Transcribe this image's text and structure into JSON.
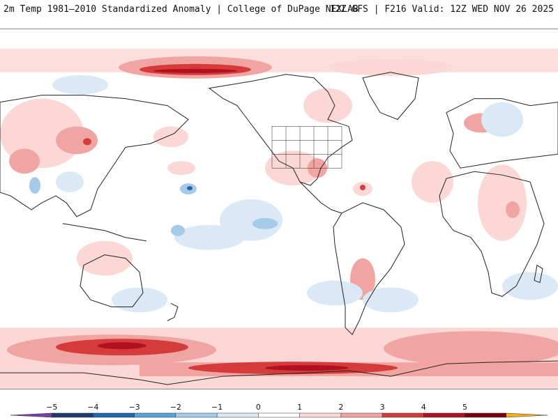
{
  "header": {
    "title": "2m Temp 1981–2010 Standardized Anomaly | College of DuPage NEXLAB",
    "run_info": "12Z GFS | F216 Valid: 12Z WED NOV 26 2025"
  },
  "colorbar": {
    "ticks": [
      "−5",
      "−4",
      "−3",
      "−2",
      "−1",
      "0",
      "1",
      "2",
      "3",
      "4",
      "5"
    ],
    "segments": [
      {
        "value_from": -6,
        "value_to": -5,
        "color": "#7a3fa6"
      },
      {
        "value_from": -5,
        "value_to": -4,
        "color": "#1f3b6e"
      },
      {
        "value_from": -4,
        "value_to": -3,
        "color": "#2166ac"
      },
      {
        "value_from": -3,
        "value_to": -2,
        "color": "#5aa2d8"
      },
      {
        "value_from": -2,
        "value_to": -1,
        "color": "#a6cbe9"
      },
      {
        "value_from": -1,
        "value_to": 0,
        "color": "#dbe9f6"
      },
      {
        "value_from": 0,
        "value_to": 1,
        "color": "#ffffff"
      },
      {
        "value_from": 1,
        "value_to": 2,
        "color": "#fbd7d5"
      },
      {
        "value_from": 2,
        "value_to": 3,
        "color": "#f0a5a2"
      },
      {
        "value_from": 3,
        "value_to": 4,
        "color": "#d63b3b"
      },
      {
        "value_from": 4,
        "value_to": 5,
        "color": "#b01020"
      },
      {
        "value_from": 5,
        "value_to": 6,
        "color": "#7a0010"
      },
      {
        "value_from": 6,
        "value_to": 7,
        "color": "#f0b020"
      }
    ]
  },
  "map_colors": {
    "warm_light": "#fbd7d5",
    "warm_mid": "#f0a5a2",
    "warm_strong": "#d63b3b",
    "warm_extreme": "#b01020",
    "cool_light": "#dbe9f6",
    "cool_mid": "#a6cbe9",
    "cool_strong": "#2166ac",
    "outline": "#222222"
  }
}
